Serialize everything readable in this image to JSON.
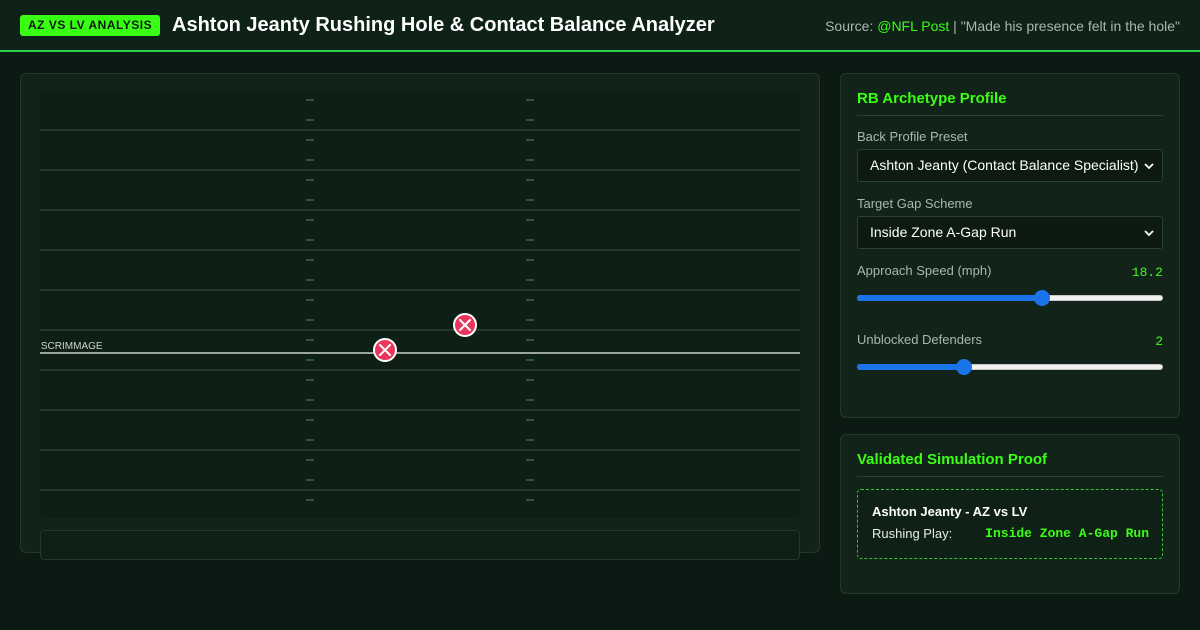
{
  "header": {
    "badge": "AZ VS LV ANALYSIS",
    "title": "Ashton Jeanty Rushing Hole & Contact Balance Analyzer",
    "source_prefix": "Source: ",
    "source_handle": "@NFL Post",
    "source_quote": " | \"Made his presence felt in the hole\""
  },
  "field": {
    "los_label": "F SCRIMMAGE"
  },
  "profile": {
    "title": "RB Archetype Profile",
    "preset_label": "Back Profile Preset",
    "preset_value": "Ashton Jeanty (Contact Balance Specialist)",
    "gap_label": "Target Gap Scheme",
    "gap_value": "Inside Zone A-Gap Run",
    "speed_label": "Approach Speed (mph)",
    "speed_value": "18.2",
    "speed_fraction": 0.61,
    "defenders_label": "Unblocked Defenders",
    "defenders_value": "2",
    "defenders_fraction": 0.34
  },
  "proof": {
    "title": "Validated Simulation Proof",
    "box_title": "Ashton Jeanty - AZ vs LV",
    "play_key": "Rushing Play:",
    "play_value": "Inside Zone A-Gap Run"
  },
  "colors": {
    "accent": "#39ff14",
    "defender": "#e8365d",
    "slider": "#1a73e8"
  }
}
